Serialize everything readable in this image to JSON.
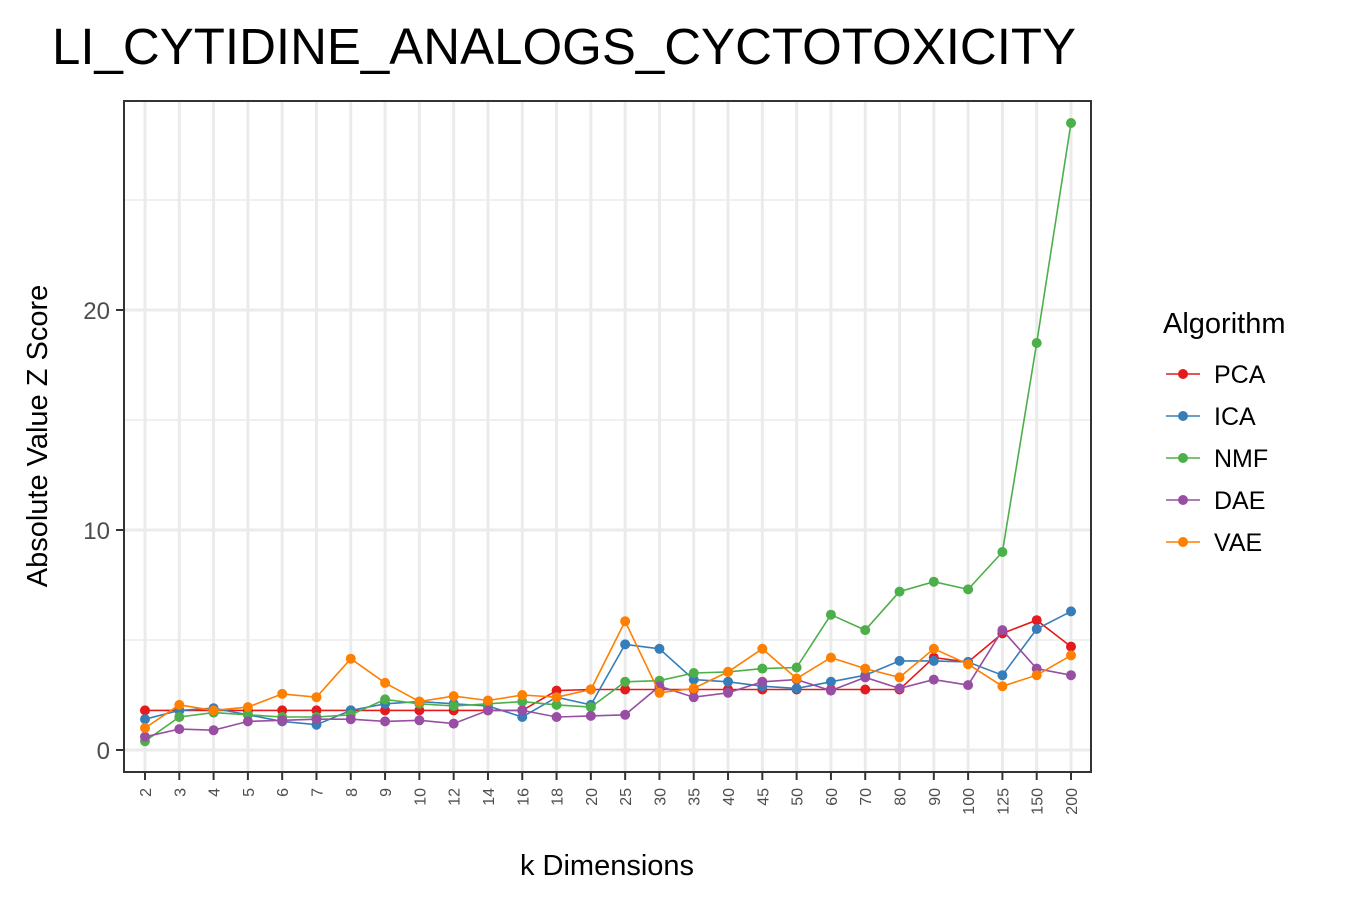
{
  "chart_data": {
    "type": "line",
    "title": "LI_CYTIDINE_ANALOGS_CYCTOTOXICITY",
    "xlabel": "k Dimensions",
    "ylabel": "Absolute Value Z Score",
    "categories": [
      "2",
      "3",
      "4",
      "5",
      "6",
      "7",
      "8",
      "9",
      "10",
      "12",
      "14",
      "16",
      "18",
      "20",
      "25",
      "30",
      "35",
      "40",
      "45",
      "50",
      "60",
      "70",
      "80",
      "90",
      "100",
      "125",
      "150",
      "200"
    ],
    "ylim": [
      -1,
      29.5
    ],
    "yticks": [
      0,
      10,
      20
    ],
    "grid": true,
    "legend": {
      "title": "Algorithm",
      "placement": "right"
    },
    "series": [
      {
        "name": "PCA",
        "color": "#E41A1C",
        "values": [
          1.8,
          1.8,
          1.8,
          1.8,
          1.8,
          1.8,
          1.8,
          1.8,
          1.8,
          1.8,
          1.8,
          1.8,
          2.7,
          2.75,
          2.75,
          2.75,
          2.75,
          2.75,
          2.75,
          2.75,
          2.75,
          2.75,
          2.75,
          4.2,
          4.0,
          5.3,
          5.9,
          4.7
        ]
      },
      {
        "name": "ICA",
        "color": "#377EB8",
        "values": [
          1.4,
          1.8,
          1.9,
          1.6,
          1.3,
          1.15,
          1.8,
          2.1,
          2.2,
          2.1,
          2.0,
          1.5,
          2.4,
          2.05,
          4.8,
          4.6,
          3.2,
          3.1,
          2.9,
          2.8,
          3.1,
          3.4,
          4.05,
          4.05,
          4.0,
          3.4,
          5.5,
          6.3
        ]
      },
      {
        "name": "NMF",
        "color": "#4DAF4A",
        "values": [
          0.4,
          1.5,
          1.7,
          1.6,
          1.5,
          1.5,
          1.6,
          2.3,
          2.1,
          2.0,
          2.1,
          2.2,
          2.05,
          1.95,
          3.1,
          3.15,
          3.5,
          3.55,
          3.7,
          3.75,
          6.15,
          5.45,
          7.2,
          7.65,
          7.3,
          9.0,
          18.5,
          28.5
        ]
      },
      {
        "name": "DAE",
        "color": "#984EA3",
        "values": [
          0.6,
          0.95,
          0.9,
          1.3,
          1.35,
          1.4,
          1.4,
          1.3,
          1.35,
          1.2,
          1.8,
          1.8,
          1.5,
          1.55,
          1.6,
          2.9,
          2.4,
          2.6,
          3.1,
          3.2,
          2.7,
          3.3,
          2.8,
          3.2,
          2.95,
          5.45,
          3.7,
          3.4
        ]
      },
      {
        "name": "VAE",
        "color": "#FF7F00",
        "values": [
          1.0,
          2.05,
          1.8,
          1.95,
          2.55,
          2.4,
          4.15,
          3.05,
          2.2,
          2.45,
          2.25,
          2.5,
          2.4,
          2.75,
          5.85,
          2.6,
          2.8,
          3.55,
          4.6,
          3.25,
          4.2,
          3.7,
          3.3,
          4.6,
          3.9,
          2.9,
          3.4,
          4.3
        ]
      }
    ]
  }
}
